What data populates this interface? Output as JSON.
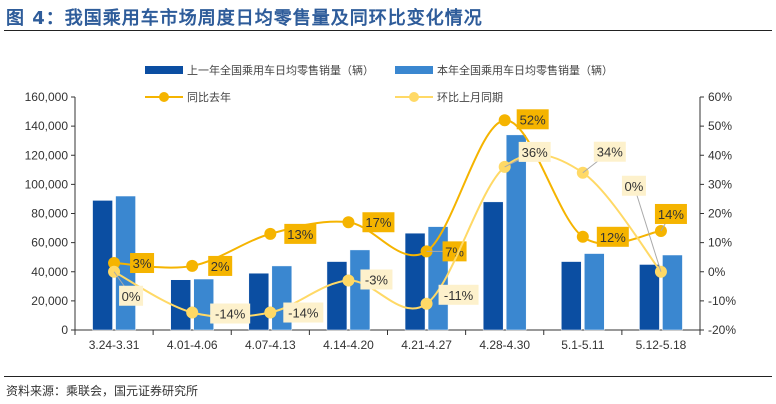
{
  "title": "图 4：我国乘用车市场周度日均零售量及同环比变化情况",
  "source": "资料来源：乘联会，国元证券研究所",
  "colors": {
    "title": "#2e5c9a",
    "prev_bar": "#0b4ea2",
    "curr_bar": "#3a87d0",
    "yoy": "#f5b400",
    "mom": "#ffd966",
    "mom_label_bg": "#fdf1cc"
  },
  "chart_data": {
    "type": "bar",
    "categories": [
      "3.24-3.31",
      "4.01-4.06",
      "4.07-4.13",
      "4.14-4.20",
      "4.21-4.27",
      "4.28-4.30",
      "5.1-5.11",
      "5.12-5.18"
    ],
    "series": [
      {
        "name": "上一年全国乘用车日均零售销量（辆）",
        "type": "bar",
        "axis": "left",
        "values": [
          89000,
          34500,
          39000,
          47000,
          66500,
          88000,
          47000,
          45000
        ]
      },
      {
        "name": "本年全国乘用车日均零售销量（辆）",
        "type": "bar",
        "axis": "left",
        "values": [
          92000,
          35000,
          44000,
          55000,
          71000,
          134000,
          52500,
          51500
        ]
      },
      {
        "name": "同比去年",
        "type": "line",
        "axis": "right",
        "values": [
          3,
          2,
          13,
          17,
          7,
          52,
          12,
          14
        ],
        "labels": [
          "3%",
          "2%",
          "13%",
          "17%",
          "7%",
          "52%",
          "12%",
          "14%"
        ]
      },
      {
        "name": "环比上月同期",
        "type": "line",
        "axis": "right",
        "values": [
          0,
          -14,
          -14,
          -3,
          -11,
          36,
          34,
          0
        ],
        "labels": [
          "0%",
          "-14%",
          "-14%",
          "-3%",
          "-11%",
          "36%",
          "34%",
          "0%"
        ]
      }
    ],
    "ylim_left": [
      0,
      160000
    ],
    "yticks_left": [
      "0",
      "20,000",
      "40,000",
      "60,000",
      "80,000",
      "100,000",
      "120,000",
      "140,000",
      "160,000"
    ],
    "ylim_right": [
      -20,
      60
    ],
    "yticks_right": [
      "-20%",
      "-10%",
      "0%",
      "10%",
      "20%",
      "30%",
      "40%",
      "50%",
      "60%"
    ],
    "grid": false,
    "legend": "top"
  }
}
